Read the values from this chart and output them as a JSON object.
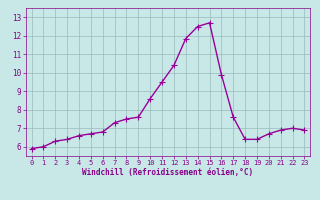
{
  "x": [
    0,
    1,
    2,
    3,
    4,
    5,
    6,
    7,
    8,
    9,
    10,
    11,
    12,
    13,
    14,
    15,
    16,
    17,
    18,
    19,
    20,
    21,
    22,
    23
  ],
  "y": [
    5.9,
    6.0,
    6.3,
    6.4,
    6.6,
    6.7,
    6.8,
    7.3,
    7.5,
    7.6,
    8.6,
    9.5,
    10.4,
    11.85,
    12.5,
    12.7,
    9.9,
    7.6,
    6.4,
    6.4,
    6.7,
    6.9,
    7.0,
    6.9
  ],
  "line_color": "#990099",
  "marker": "+",
  "marker_size": 4,
  "bg_color": "#c8e8e8",
  "grid_color": "#99bbbb",
  "xlabel": "Windchill (Refroidissement éolien,°C)",
  "xlabel_color": "#880088",
  "tick_color": "#880088",
  "ylim": [
    5.5,
    13.5
  ],
  "xlim": [
    -0.5,
    23.5
  ],
  "yticks": [
    6,
    7,
    8,
    9,
    10,
    11,
    12,
    13
  ],
  "xticks": [
    0,
    1,
    2,
    3,
    4,
    5,
    6,
    7,
    8,
    9,
    10,
    11,
    12,
    13,
    14,
    15,
    16,
    17,
    18,
    19,
    20,
    21,
    22,
    23
  ],
  "line_width": 1.0,
  "marker_lw": 0.8,
  "fig_width": 3.2,
  "fig_height": 2.0,
  "dpi": 100
}
